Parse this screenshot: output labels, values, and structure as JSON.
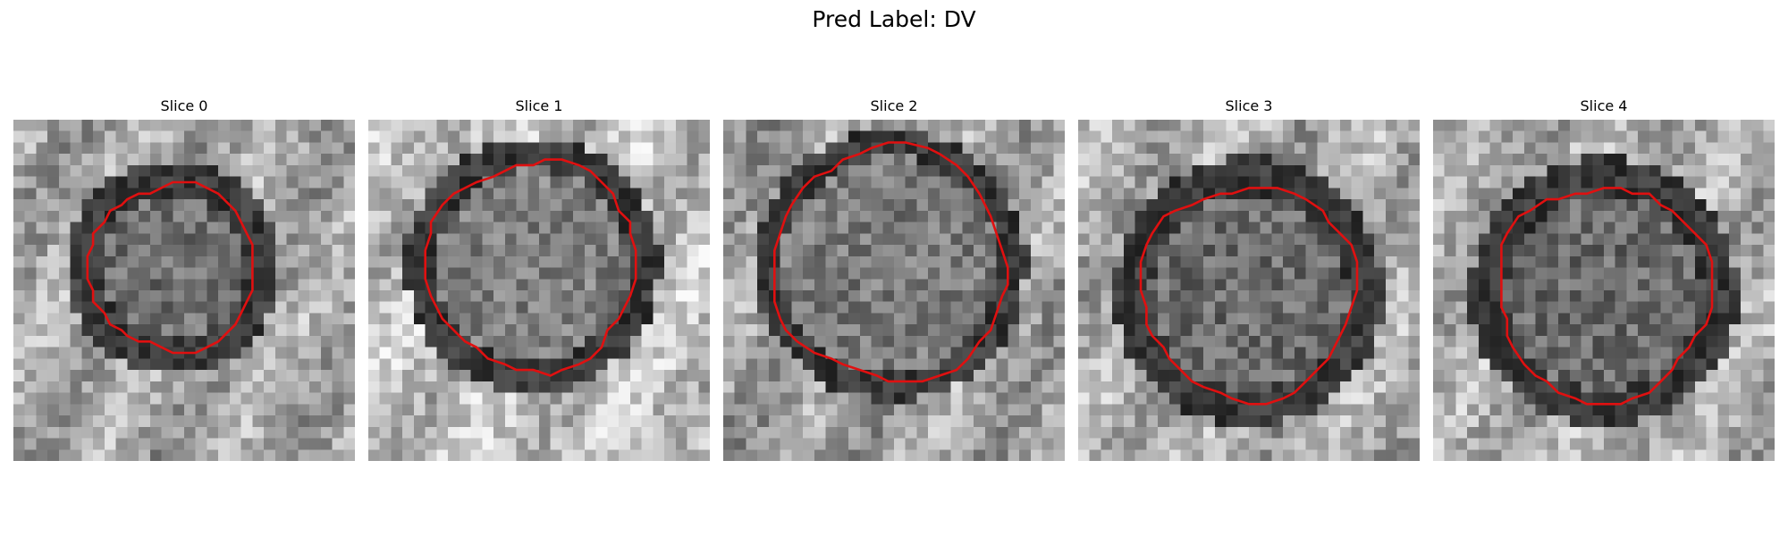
{
  "figure": {
    "title": "Pred Label: DV"
  },
  "panels": [
    {
      "title": "Slice 0"
    },
    {
      "title": "Slice 1"
    },
    {
      "title": "Slice 2"
    },
    {
      "title": "Slice 3"
    },
    {
      "title": "Slice 4"
    }
  ],
  "colors": {
    "contour": "#e01010",
    "background": "#ffffff"
  }
}
